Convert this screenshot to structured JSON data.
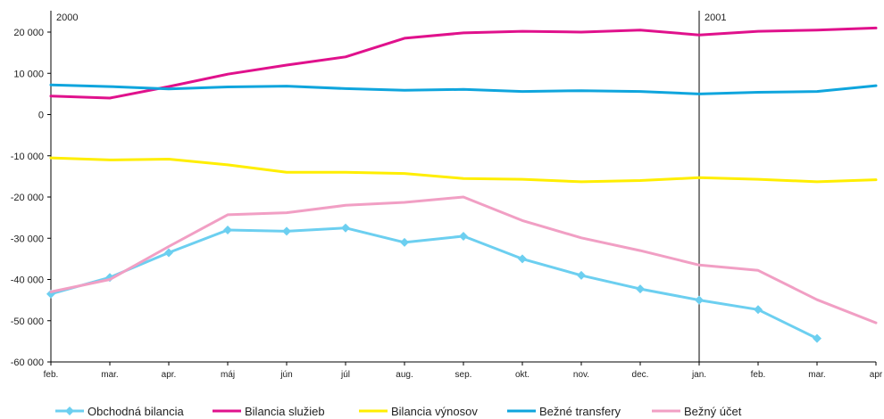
{
  "chart_data": {
    "type": "line",
    "title": "",
    "xlabel": "",
    "ylabel": "",
    "ylim": [
      -60000,
      20000
    ],
    "yticks": [
      20000,
      10000,
      0,
      -10000,
      -20000,
      -30000,
      -40000,
      -50000,
      -60000
    ],
    "ytick_labels": [
      "20 000",
      "10 000",
      "0",
      "-10 000",
      "-20 000",
      "-30 000",
      "-40 000",
      "-50 000",
      "-60 000"
    ],
    "categories": [
      "feb.",
      "mar.",
      "apr.",
      "máj",
      "jún",
      "júl",
      "aug.",
      "sep.",
      "okt.",
      "nov.",
      "dec.",
      "jan.",
      "feb.",
      "mar.",
      "apr"
    ],
    "year_labels": [
      {
        "text": "2000",
        "category_index": 0
      },
      {
        "text": "2001",
        "category_index": 11
      }
    ],
    "grid": false,
    "legend_position": "bottom",
    "series": [
      {
        "name": "Obchodná bilancia",
        "color": "#6ccff0",
        "marker": "diamond",
        "values": [
          -43500,
          -39500,
          -33500,
          -28000,
          -28300,
          -27500,
          -31000,
          -29500,
          -35000,
          -39000,
          -42300,
          -45000,
          -47300,
          -54300,
          null
        ]
      },
      {
        "name": "Bilancia služieb",
        "color": "#e0118c",
        "marker": "none",
        "values": [
          4500,
          4000,
          6800,
          9800,
          12000,
          14000,
          18500,
          19800,
          20200,
          20000,
          20500,
          19300,
          20200,
          20500,
          21000
        ]
      },
      {
        "name": "Bilancia výnosov",
        "color": "#ffee00",
        "marker": "none",
        "values": [
          -10500,
          -11000,
          -10800,
          -12200,
          -14000,
          -14000,
          -14300,
          -15500,
          -15700,
          -16300,
          -16000,
          -15300,
          -15700,
          -16300,
          -15800
        ]
      },
      {
        "name": "Bežné transfery",
        "color": "#0fa5dd",
        "marker": "none",
        "values": [
          7200,
          6800,
          6200,
          6700,
          6900,
          6300,
          5900,
          6100,
          5600,
          5800,
          5600,
          5000,
          5400,
          5600,
          7000
        ]
      },
      {
        "name": "Bežný účet",
        "color": "#f19fc4",
        "marker": "none",
        "values": [
          -43000,
          -40000,
          -32000,
          -24300,
          -23800,
          -22000,
          -21300,
          -20000,
          -25700,
          -29900,
          -33000,
          -36500,
          -37800,
          -44900,
          -50500
        ]
      }
    ]
  }
}
